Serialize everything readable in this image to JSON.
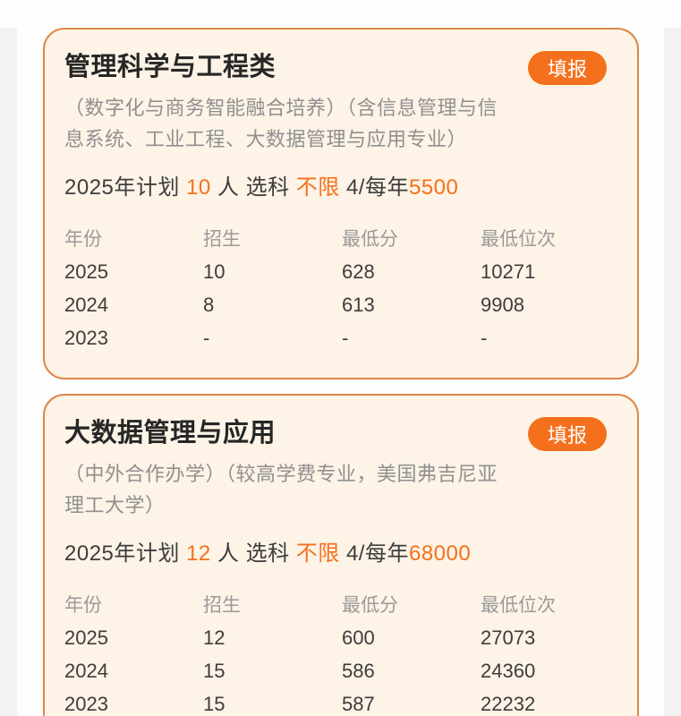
{
  "colors": {
    "accent_orange": "#f5701d",
    "card_background": "#fdf3e6",
    "card_border": "#dd8748",
    "title_text": "#262626",
    "body_text": "#3d3d3d",
    "muted_text": "#909090",
    "page_background": "#fefefe",
    "gutter_gray": "#f2f2f2"
  },
  "cards": [
    {
      "title": "管理科学与工程类",
      "apply_button": "填报",
      "subtitle": "（数字化与商务智能融合培养）（含信息管理与信息系统、工业工程、大数据管理与应用专业）",
      "plan_segments": [
        [
          "2025年计划 ",
          "dark"
        ],
        [
          "10",
          "accent"
        ],
        [
          " 人 选科 ",
          "dark"
        ],
        [
          "不限",
          "accent"
        ],
        [
          " 4/每年",
          "dark"
        ],
        [
          "5500",
          "accent"
        ]
      ],
      "table": {
        "headers": [
          "年份",
          "招生",
          "最低分",
          "最低位次"
        ],
        "rows": [
          [
            "2025",
            "10",
            "628",
            "10271"
          ],
          [
            "2024",
            "8",
            "613",
            "9908"
          ],
          [
            "2023",
            "-",
            "-",
            "-"
          ]
        ]
      }
    },
    {
      "title": "大数据管理与应用",
      "apply_button": "填报",
      "subtitle": "（中外合作办学）（较高学费专业，美国弗吉尼亚理工大学）",
      "plan_segments": [
        [
          "2025年计划 ",
          "dark"
        ],
        [
          "12",
          "accent"
        ],
        [
          " 人 选科 ",
          "dark"
        ],
        [
          "不限",
          "accent"
        ],
        [
          " 4/每年",
          "dark"
        ],
        [
          "68000",
          "accent"
        ]
      ],
      "table": {
        "headers": [
          "年份",
          "招生",
          "最低分",
          "最低位次"
        ],
        "rows": [
          [
            "2025",
            "12",
            "600",
            "27073"
          ],
          [
            "2024",
            "15",
            "586",
            "24360"
          ],
          [
            "2023",
            "15",
            "587",
            "22232"
          ]
        ]
      }
    }
  ]
}
